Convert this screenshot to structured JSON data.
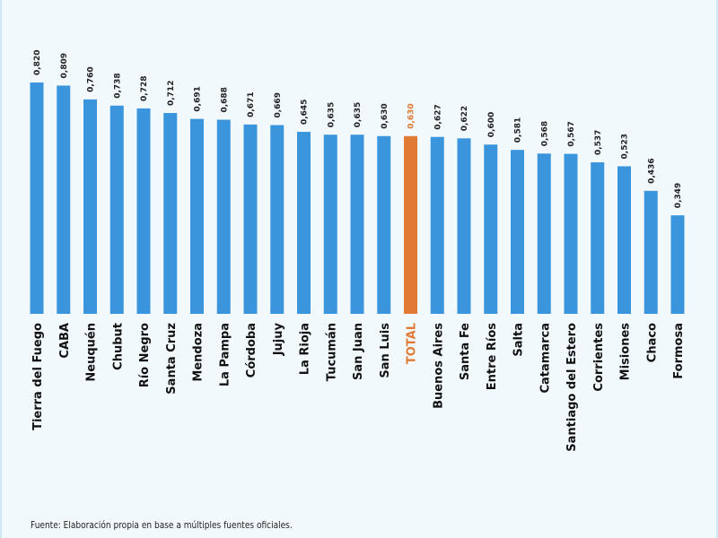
{
  "chart_data": {
    "type": "bar",
    "categories": [
      "Tierra del Fuego",
      "CABA",
      "Neuquén",
      "Chubut",
      "Río Negro",
      "Santa Cruz",
      "Mendoza",
      "La Pampa",
      "Córdoba",
      "Jujuy",
      "La Rioja",
      "Tucumán",
      "San Juan",
      "San Luis",
      "TOTAL",
      "Buenos Aires",
      "Santa Fe",
      "Entre Ríos",
      "Salta",
      "Catamarca",
      "Santiago del Estero",
      "Corrientes",
      "Misiones",
      "Chaco",
      "Formosa"
    ],
    "values": [
      0.82,
      0.809,
      0.76,
      0.738,
      0.728,
      0.712,
      0.691,
      0.688,
      0.671,
      0.669,
      0.645,
      0.635,
      0.635,
      0.63,
      0.63,
      0.627,
      0.622,
      0.6,
      0.581,
      0.568,
      0.567,
      0.537,
      0.523,
      0.436,
      0.349
    ],
    "value_labels": [
      "0,820",
      "0,809",
      "0,760",
      "0,738",
      "0,728",
      "0,712",
      "0,691",
      "0,688",
      "0,671",
      "0,669",
      "0,645",
      "0,635",
      "0,635",
      "0,630",
      "0,630",
      "0,627",
      "0,622",
      "0,600",
      "0,581",
      "0,568",
      "0,567",
      "0,537",
      "0,523",
      "0,436",
      "0,349"
    ],
    "highlight_category": "TOTAL",
    "bar_color": "#3b95dc",
    "highlight_color": "#e07a34",
    "title": "",
    "xlabel": "",
    "ylabel": "",
    "ylim": [
      0,
      0.82
    ],
    "grid": false
  },
  "source_note": "Fuente: Elaboración propia en base a múltiples fuentes oficiales."
}
